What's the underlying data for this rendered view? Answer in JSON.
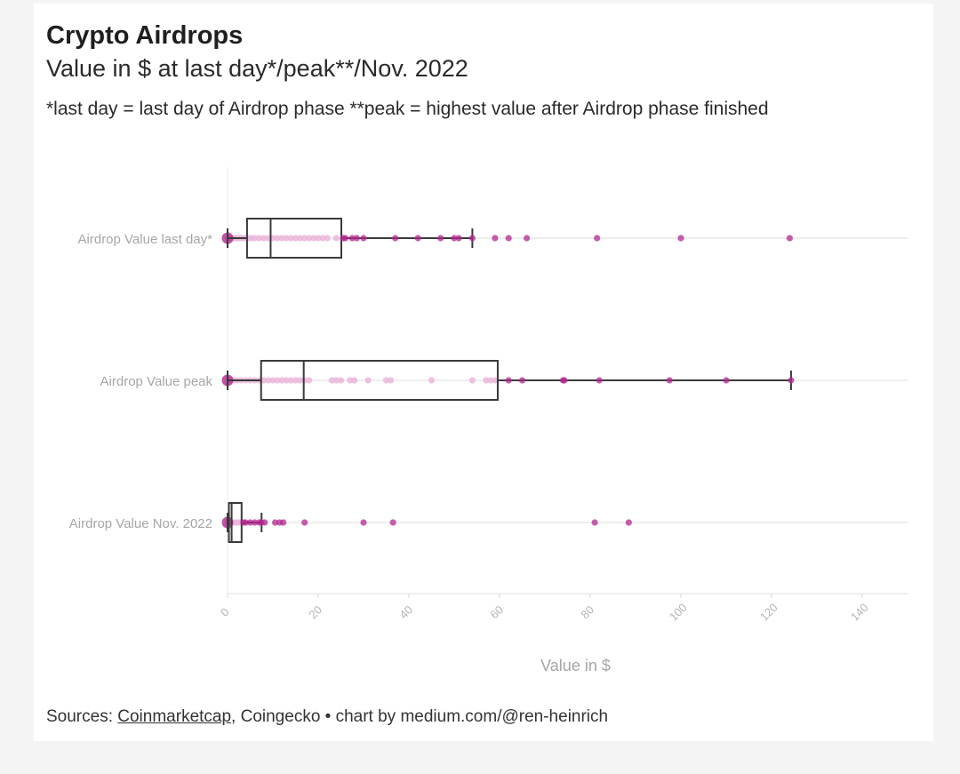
{
  "header": {
    "title": "Crypto Airdrops",
    "subtitle": "Value in $ at last day*/peak**/Nov. 2022",
    "note": "*last day = last day of Airdrop phase **peak = highest value after Airdrop phase finished"
  },
  "footer": {
    "prefix": "Sources: ",
    "link": "Coinmarketcap",
    "rest": ", Coingecko • chart by medium.com/@ren-heinrich"
  },
  "colors": {
    "outlier": "#b2278f",
    "light_point": "#eab6d9",
    "box_stroke": "#3a3a3a",
    "grid": "#eeeeee"
  },
  "chart_data": {
    "type": "box",
    "orientation": "horizontal",
    "xlabel": "Value in $",
    "xlim": [
      0,
      150
    ],
    "xticks": [
      0,
      20,
      40,
      60,
      80,
      100,
      120,
      140
    ],
    "grid": "horizontal lines per category",
    "series": [
      {
        "name": "Airdrop Value last day*",
        "min": 0,
        "q1": 4.3,
        "median": 9.5,
        "q3": 25.1,
        "max": 54,
        "inner_points": [
          0.2,
          0.5,
          0.8,
          1.2,
          1.6,
          2.1,
          2.6,
          3.2,
          3.8,
          4.5,
          5.2,
          6,
          7,
          8,
          9,
          10,
          11,
          12,
          13,
          14,
          15,
          16,
          17,
          18,
          19,
          20,
          21,
          22,
          24
        ],
        "outliers": [
          25.5,
          26,
          27.5,
          28.5,
          30,
          37,
          42,
          47,
          50,
          51,
          54,
          59,
          62,
          66,
          81.5,
          100,
          124
        ]
      },
      {
        "name": "Airdrop Value peak",
        "min": 0,
        "q1": 7.4,
        "median": 16.8,
        "q3": 59.6,
        "max": 124.3,
        "inner_points": [
          0.3,
          0.8,
          1.5,
          2.2,
          3,
          4,
          5,
          6,
          7,
          8,
          9,
          10,
          11,
          12,
          13,
          14,
          15,
          16,
          17,
          18,
          23,
          24,
          25,
          27,
          28,
          31,
          35,
          36,
          45,
          54,
          57,
          58,
          59
        ],
        "outliers": [
          62,
          65,
          74,
          74.3,
          82,
          97.5,
          110,
          124.3
        ]
      },
      {
        "name": "Airdrop Value Nov. 2022",
        "min": 0,
        "q1": 0.3,
        "median": 0.9,
        "q3": 3.1,
        "max": 7.5,
        "inner_points": [
          0.1,
          0.3,
          0.6,
          1,
          1.5,
          2,
          2.5,
          3
        ],
        "outliers": [
          3.5,
          4,
          5,
          6,
          7,
          7.5,
          8.2,
          10.5,
          11.5,
          12.3,
          17,
          30,
          36.5,
          81,
          88.5
        ]
      }
    ]
  }
}
